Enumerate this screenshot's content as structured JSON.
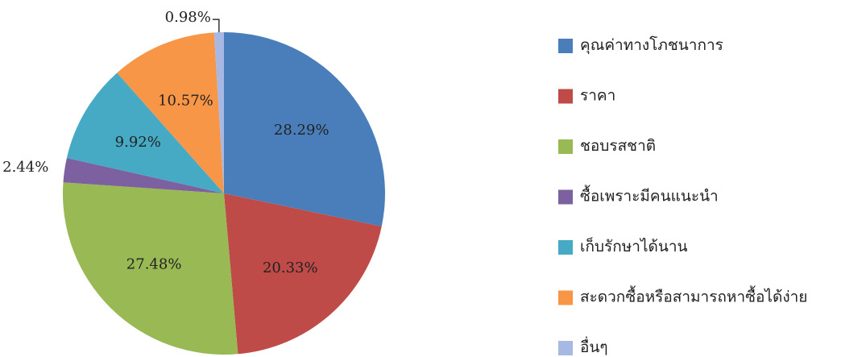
{
  "chart_data": {
    "type": "pie",
    "categories": [
      "คุณค่าทางโภชนาการ",
      "ราคา",
      "ชอบรสชาติ",
      "ซื้อเพราะมีคนแนะนำ",
      "เก็บรักษาได้นาน",
      "สะดวกซื้อหรือสามารถหาซื้อได้ง่าย",
      "อื่นๆ"
    ],
    "values": [
      28.29,
      20.33,
      27.48,
      2.44,
      9.92,
      10.57,
      0.98
    ],
    "value_labels": [
      "28.29%",
      "20.33%",
      "27.48%",
      "2.44%",
      "9.92%",
      "10.57%",
      "0.98%"
    ],
    "colors": [
      "#4a7ebb",
      "#be4b48",
      "#98b954",
      "#7d60a0",
      "#46aac5",
      "#f79646",
      "#a7b9e3"
    ],
    "legend": "right"
  }
}
